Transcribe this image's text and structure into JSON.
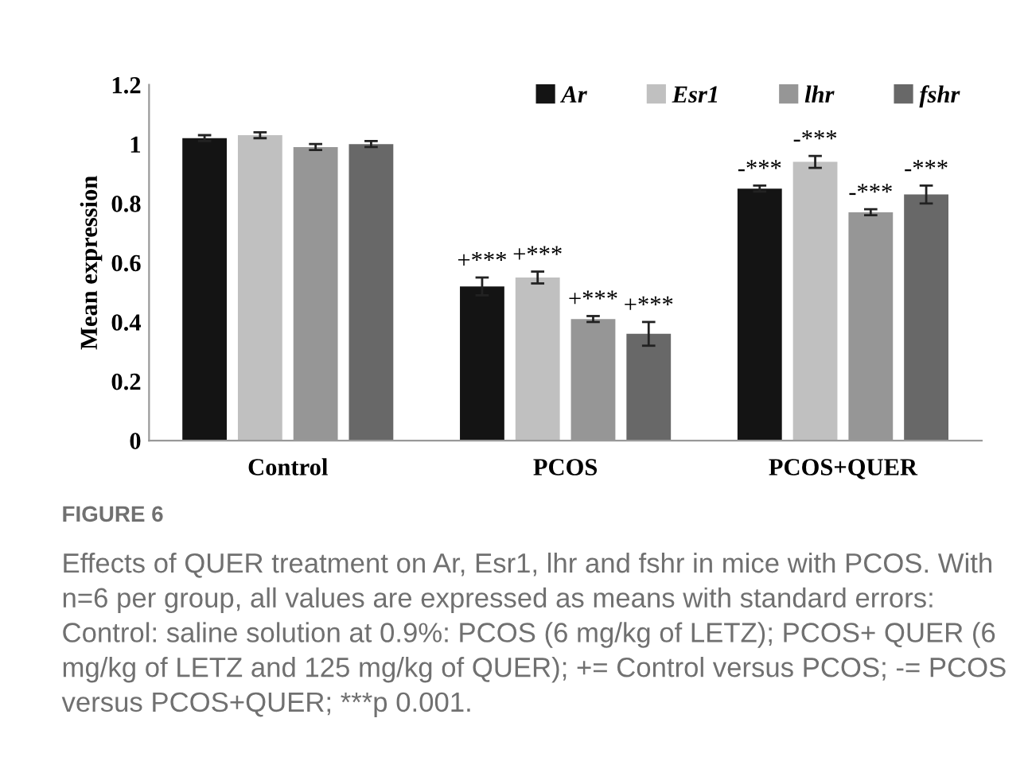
{
  "chart_data": {
    "type": "bar",
    "ylabel": "Mean expression",
    "categories": [
      "Control",
      "PCOS",
      "PCOS+QUER"
    ],
    "series": [
      {
        "name": "Ar",
        "color": "#141414",
        "values": [
          1.02,
          0.52,
          0.85
        ],
        "errors": [
          0.01,
          0.03,
          0.01
        ],
        "value_labels": [
          null,
          "+***",
          "-***"
        ]
      },
      {
        "name": "Esr1",
        "color": "#c0c0c0",
        "values": [
          1.03,
          0.55,
          0.94
        ],
        "errors": [
          0.01,
          0.02,
          0.02
        ],
        "value_labels": [
          null,
          "+***",
          "-***"
        ]
      },
      {
        "name": "lhr",
        "color": "#969696",
        "values": [
          0.99,
          0.41,
          0.77
        ],
        "errors": [
          0.01,
          0.01,
          0.01
        ],
        "value_labels": [
          null,
          "+***",
          "-***"
        ]
      },
      {
        "name": "fshr",
        "color": "#686868",
        "values": [
          1.0,
          0.36,
          0.83
        ],
        "errors": [
          0.01,
          0.04,
          0.03
        ],
        "value_labels": [
          null,
          "+***",
          "-***"
        ]
      }
    ],
    "ylim": [
      0,
      1.2
    ],
    "yticks": [
      0,
      0.2,
      0.4,
      0.6,
      0.8,
      1,
      1.2
    ],
    "grid": false,
    "legend": "top right",
    "annotations": [
      "FIGURE 6",
      "Effects of QUER treatment on Ar, Esr1, lhr and fshr in mice with PCOS. With n=6 per group, all values are expressed as means with standard errors: Control: saline solution at 0.9%: PCOS (6 mg/kg of LETZ); PCOS+ QUER (6 mg/kg of LETZ and 125 mg/kg of QUER); += Control versus PCOS; -= PCOS versus PCOS+QUER; ***p 0.001."
    ]
  }
}
